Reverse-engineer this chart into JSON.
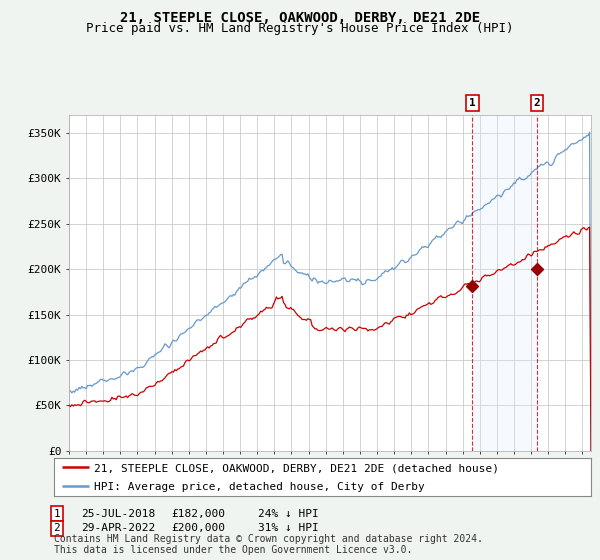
{
  "title": "21, STEEPLE CLOSE, OAKWOOD, DERBY, DE21 2DE",
  "subtitle": "Price paid vs. HM Land Registry's House Price Index (HPI)",
  "footer": "Contains HM Land Registry data © Crown copyright and database right 2024.\nThis data is licensed under the Open Government Licence v3.0.",
  "legend_label_red": "21, STEEPLE CLOSE, OAKWOOD, DERBY, DE21 2DE (detached house)",
  "legend_label_blue": "HPI: Average price, detached house, City of Derby",
  "ylabel_ticks": [
    "£0",
    "£50K",
    "£100K",
    "£150K",
    "£200K",
    "£250K",
    "£300K",
    "£350K"
  ],
  "ytick_values": [
    0,
    50000,
    100000,
    150000,
    200000,
    250000,
    300000,
    350000
  ],
  "ylim": [
    0,
    370000
  ],
  "xlim_start": 1995.0,
  "xlim_end": 2025.5,
  "sale1_x": 2018.57,
  "sale1_y": 182000,
  "sale1_label": "1",
  "sale1_date": "25-JUL-2018",
  "sale1_price": "£182,000",
  "sale1_hpi": "24% ↓ HPI",
  "sale2_x": 2022.33,
  "sale2_y": 200000,
  "sale2_label": "2",
  "sale2_date": "29-APR-2022",
  "sale2_price": "£200,000",
  "sale2_hpi": "31% ↓ HPI",
  "red_color": "#cc0000",
  "blue_color": "#6699cc",
  "shade_color": "#ddeeff",
  "background_color": "#f0f4f0",
  "plot_bg_color": "#ffffff",
  "grid_color": "#cccccc",
  "title_fontsize": 10,
  "subtitle_fontsize": 9,
  "tick_fontsize": 8,
  "legend_fontsize": 8,
  "footer_fontsize": 7
}
